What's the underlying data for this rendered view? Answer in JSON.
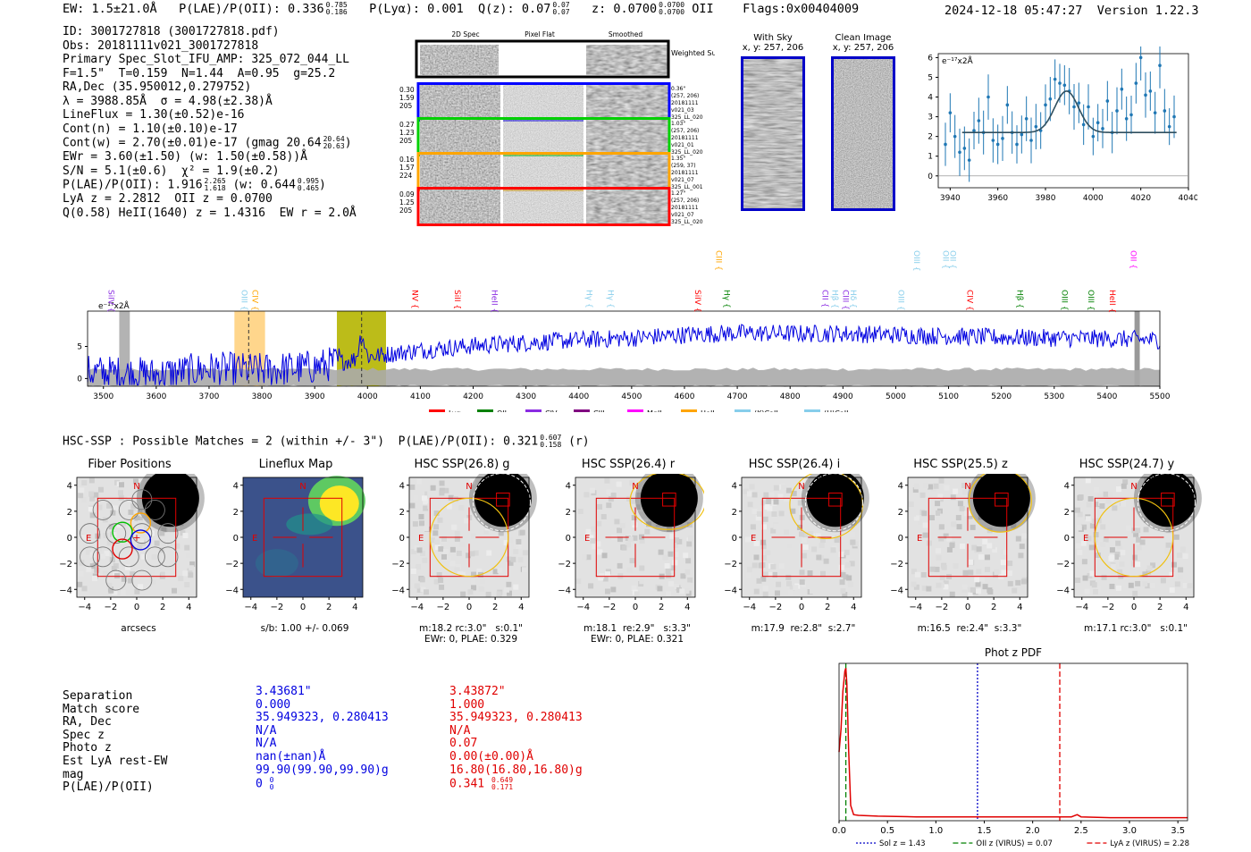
{
  "header": {
    "ew": "EW: 1.5±21.0Å",
    "plae": "P(LAE)/P(OII): 0.336",
    "plae_hi": "0.785",
    "plae_lo": "0.186",
    "plya": "P(Lyα): 0.001",
    "qz": "Q(z): 0.07",
    "qz_hi": "0.07",
    "qz_lo": "0.07",
    "z": "z: 0.0700",
    "z_hi": "0.0700",
    "z_lo": "0.0700",
    "z_line": "OII",
    "flags": "Flags:0x00404009",
    "datetime": "2024-12-18 05:47:27",
    "version": "Version 1.22.3"
  },
  "info": {
    "id": "ID: 3001727818 (3001727818.pdf)",
    "obs": "Obs: 20181111v021_3001727818",
    "primary": "Primary Spec_Slot_IFU_AMP: 325_072_044_LL",
    "fwhm": "F=1.5\"  T=0.159  N=1.44  A=0.95  g=25.2",
    "radec": "RA,Dec (35.950012,0.279752)",
    "lambda": "λ = 3988.85Å  σ = 4.98(±2.38)Å",
    "lineflux": "LineFlux = 1.30(±0.52)e-16",
    "contn": "Cont(n) = 1.10(±0.10)e-17",
    "contw": "Cont(w) = 2.70(±0.01)e-17 (gmag 20.64",
    "gmag_hi": "20.64",
    "gmag_lo": "20.63",
    "ewr": "EWr = 3.60(±1.50) (w: 1.50(±0.58))Å",
    "sn": "S/N = 5.1(±0.6)  χ² = 1.9(±0.2)",
    "plae": "P(LAE)/P(OII): 1.916",
    "plae_hi": "2.265",
    "plae_lo": "1.618",
    "plae_w": "(w: 0.644",
    "plae_w_hi": "0.995",
    "plae_w_lo": "0.465",
    "lya_z": "LyA z = 2.2812  OII z = 0.0700",
    "heii": "Q(0.58) HeII(1640) z = 1.4316  EW r = 2.0Å"
  },
  "cutouts": {
    "col_2d": "2D Spec",
    "col_flat": "Pixel Flat",
    "col_smooth": "Smoothed",
    "weighted": "Weighted Sum",
    "rows": [
      {
        "left": [
          "0.30",
          "1.59",
          "205"
        ],
        "right": [
          "0.36\"",
          "(257, 206)",
          "20181111",
          "v021_03",
          "325_LL_020"
        ],
        "color": "#0000ff"
      },
      {
        "left": [
          "0.27",
          "1.23",
          "205"
        ],
        "right": [
          "1.03\"",
          "(257, 206)",
          "20181111",
          "v021_01",
          "325_LL_020"
        ],
        "color": "#00d000"
      },
      {
        "left": [
          "0.16",
          "1.57",
          "224"
        ],
        "right": [
          "1.35\"",
          "(259, 37)",
          "20181111",
          "v021_07",
          "325_LL_001"
        ],
        "color": "#ffa500"
      },
      {
        "left": [
          "0.09",
          "1.25",
          "205"
        ],
        "right": [
          "1.27\"",
          "(257, 206)",
          "20181111",
          "v021_07",
          "325_LL_020"
        ],
        "color": "#ff0000"
      }
    ]
  },
  "sky": {
    "with_sky": "With Sky",
    "with_sky_xy": "x, y: 257, 206",
    "clean": "Clean Image",
    "clean_xy": "x, y: 257, 206"
  },
  "lines_full": [
    {
      "name": "SiIV",
      "color": "#8a2be2"
    },
    {
      "name": "OIII",
      "color": "#87ceeb"
    },
    {
      "name": "CIV",
      "color": "#ffa500"
    },
    {
      "name": "NV",
      "color": "#ff0000"
    },
    {
      "name": "SiII",
      "color": "#ff0000"
    },
    {
      "name": "HeII",
      "color": "#8a2be2"
    },
    {
      "name": "Hγ",
      "color": "#87ceeb"
    },
    {
      "name": "Hγ",
      "color": "#87ceeb"
    },
    {
      "name": "SiIV",
      "color": "#ff0000"
    },
    {
      "name": "CIII",
      "color": "#ffa500"
    },
    {
      "name": "Hγ",
      "color": "#008000"
    },
    {
      "name": "CII",
      "color": "#8a2be2"
    },
    {
      "name": "Hβ",
      "color": "#87ceeb"
    },
    {
      "name": "CIII",
      "color": "#8a2be2"
    },
    {
      "name": "Hδ",
      "color": "#87ceeb"
    },
    {
      "name": "OIII",
      "color": "#87ceeb"
    },
    {
      "name": "OIII",
      "color": "#87ceeb"
    },
    {
      "name": "OII",
      "color": "#87ceeb"
    },
    {
      "name": "OII",
      "color": "#87ceeb"
    },
    {
      "name": "CIV",
      "color": "#ff0000"
    },
    {
      "name": "Hβ",
      "color": "#008000"
    },
    {
      "name": "OIII",
      "color": "#008000"
    },
    {
      "name": "OIII",
      "color": "#008000"
    },
    {
      "name": "HeII",
      "color": "#ff0000"
    },
    {
      "name": "OII",
      "color": "#ff00ff"
    }
  ],
  "legend": [
    {
      "label": "Lyα",
      "color": "#ff0000"
    },
    {
      "label": "OII",
      "color": "#008000"
    },
    {
      "label": "CIV",
      "color": "#8a2be2"
    },
    {
      "label": "CIII",
      "color": "#800080"
    },
    {
      "label": "MgII",
      "color": "#ff00ff"
    },
    {
      "label": "HeII",
      "color": "#ffa500"
    },
    {
      "label": "(K)CaII",
      "color": "#87ceeb"
    },
    {
      "label": "(H)CaII",
      "color": "#87ceeb"
    }
  ],
  "hsc": {
    "line": "HSC-SSP : Possible Matches = 2 (within +/- 3\")  P(LAE)/P(OII): 0.321",
    "plae_hi": "0.607",
    "plae_lo": "0.158",
    "plae_tail": "(r)",
    "panels": [
      {
        "title": "Fiber Positions",
        "cap1": "arcsecs",
        "cap2": ""
      },
      {
        "title": "Lineflux Map",
        "cap1": "s/b: 1.00 +/- 0.069",
        "cap2": ""
      },
      {
        "title": "HSC SSP(26.8) g",
        "cap1": "m:18.2 rc:3.0\"   s:0.1\"",
        "cap2": "EWr: 0, PLAE: 0.329"
      },
      {
        "title": "HSC SSP(26.4) r",
        "cap1": "m:18.1  re:2.9\"   s:3.3\"",
        "cap2": "EWr: 0, PLAE: 0.321"
      },
      {
        "title": "HSC SSP(26.4) i",
        "cap1": "m:17.9  re:2.8\"  s:2.7\"",
        "cap2": ""
      },
      {
        "title": "HSC SSP(25.5) z",
        "cap1": "m:16.5  re:2.4\"  s:3.3\"",
        "cap2": ""
      },
      {
        "title": "HSC SSP(24.7) y",
        "cap1": "m:17.1 rc:3.0\"   s:0.1\"",
        "cap2": ""
      }
    ],
    "compass_n": "N",
    "compass_e": "E",
    "ticks": [
      "4",
      "2",
      "0",
      "−2",
      "−4"
    ],
    "xticks": [
      "−4",
      "−2",
      "0",
      "2",
      "4"
    ]
  },
  "match_table": {
    "labels": [
      "Separation",
      "Match score",
      "RA, Dec",
      "Spec z",
      "Photo z",
      "Est LyA rest-EW",
      "mag",
      "P(LAE)/P(OII)"
    ],
    "colA": [
      "3.43681\"",
      "0.000",
      "35.949323, 0.280413",
      "N/A",
      "N/A",
      "nan(±nan)Å",
      "99.90(99.90,99.90)g",
      "0"
    ],
    "colA_plae_hi": "0",
    "colA_plae_lo": "0",
    "colB": [
      "3.43872\"",
      "1.000",
      "35.949323, 0.280413",
      "N/A",
      "0.07",
      "0.00(±0.00)Å",
      "16.80(16.80,16.80)g",
      "0.341"
    ],
    "colB_plae_hi": "0.649",
    "colB_plae_lo": "0.171"
  },
  "chart_data": [
    {
      "type": "line",
      "name": "emission line fit",
      "title": "",
      "ylabel_unit": "e⁻¹⁷x2Å",
      "xlim": [
        3935,
        4040
      ],
      "ylim": [
        -0.6,
        6.2
      ],
      "xticks": [
        3940,
        3960,
        3980,
        4000,
        4020,
        4040
      ],
      "yticks": [
        0,
        1,
        2,
        3,
        4,
        5,
        6
      ],
      "data_x": [
        3938,
        3940,
        3942,
        3944,
        3946,
        3948,
        3950,
        3952,
        3954,
        3956,
        3958,
        3960,
        3962,
        3964,
        3966,
        3968,
        3970,
        3972,
        3974,
        3976,
        3978,
        3980,
        3982,
        3984,
        3986,
        3988,
        3990,
        3992,
        3994,
        3996,
        3998,
        4000,
        4002,
        4004,
        4006,
        4008,
        4010,
        4012,
        4014,
        4016,
        4018,
        4020,
        4022,
        4024,
        4026,
        4028,
        4030,
        4032,
        4034
      ],
      "data_y": [
        1.6,
        3.2,
        2.0,
        1.2,
        1.4,
        0.8,
        2.3,
        2.8,
        2.2,
        4.0,
        1.8,
        1.6,
        1.9,
        3.6,
        2.2,
        1.6,
        2.1,
        2.9,
        1.8,
        2.5,
        2.3,
        3.6,
        3.9,
        4.9,
        4.7,
        4.6,
        4.3,
        3.5,
        3.7,
        2.6,
        3.5,
        2.0,
        2.7,
        2.4,
        3.8,
        2.2,
        3.3,
        4.4,
        2.9,
        3.1,
        4.7,
        6.0,
        4.1,
        4.3,
        3.2,
        5.6,
        3.3,
        2.5,
        3.0
      ],
      "fit": {
        "model": "gaussian",
        "center": 3988.85,
        "sigma": 4.98,
        "amplitude": 2.1,
        "continuum": 2.2
      },
      "xstart_fit": 3945,
      "xend_fit": 4035
    },
    {
      "type": "line",
      "name": "full spectrum",
      "ylabel_unit": "e⁻¹⁷x2Å",
      "xlim": [
        3470,
        5500
      ],
      "ylim": [
        -1.2,
        10.5
      ],
      "xticks": [
        3500,
        3600,
        3700,
        3800,
        3900,
        4000,
        4100,
        4200,
        4300,
        4400,
        4500,
        4600,
        4700,
        4800,
        4900,
        5000,
        5100,
        5200,
        5300,
        5400,
        5500
      ],
      "yticks": [
        0,
        5
      ],
      "highlight_ranges": [
        {
          "from": 3748,
          "to": 3806,
          "color": "#ffa500",
          "alpha": 0.45
        },
        {
          "from": 3942,
          "to": 4035,
          "color": "#b5b500",
          "alpha": 0.9
        },
        {
          "from": 3530,
          "to": 3550,
          "color": "#808080",
          "alpha": 0.6
        },
        {
          "from": 5452,
          "to": 5462,
          "color": "#808080",
          "alpha": 0.8
        }
      ],
      "markers": [
        3775,
        3988.85
      ],
      "line_positions": [
        3505,
        3757,
        3777,
        4080,
        4160,
        4230,
        4410,
        4450,
        4615,
        4655,
        4670,
        4856,
        4875,
        4895,
        4910,
        5000,
        5030,
        5085,
        5098,
        5130,
        5225,
        5310,
        5360,
        5400,
        5440
      ],
      "continuum_level": [
        [
          3470,
          1.0
        ],
        [
          3600,
          0.6
        ],
        [
          3700,
          1.5
        ],
        [
          3800,
          1.3
        ],
        [
          3900,
          1.8
        ],
        [
          4000,
          3.4
        ],
        [
          4100,
          4.4
        ],
        [
          4200,
          5.1
        ],
        [
          4300,
          5.6
        ],
        [
          4400,
          6.0
        ],
        [
          4500,
          6.3
        ],
        [
          4600,
          6.8
        ],
        [
          4700,
          7.1
        ],
        [
          4800,
          7.0
        ],
        [
          4900,
          7.0
        ],
        [
          5000,
          6.8
        ],
        [
          5100,
          6.6
        ],
        [
          5200,
          6.4
        ],
        [
          5300,
          6.3
        ],
        [
          5400,
          6.2
        ],
        [
          5500,
          6.0
        ]
      ]
    },
    {
      "type": "line",
      "name": "Phot z PDF",
      "title": "Phot z PDF",
      "xlim": [
        0,
        3.6
      ],
      "xticks": [
        0.0,
        0.5,
        1.0,
        1.5,
        2.0,
        2.5,
        3.0,
        3.5
      ],
      "curve_x": [
        0,
        0.02,
        0.04,
        0.06,
        0.07,
        0.08,
        0.1,
        0.12,
        0.15,
        0.2,
        0.4,
        0.8,
        1.2,
        1.6,
        2.0,
        2.4,
        2.46,
        2.5,
        2.8,
        3.2,
        3.6
      ],
      "curve_y": [
        0.45,
        0.6,
        0.85,
        0.98,
        1.0,
        0.9,
        0.45,
        0.1,
        0.04,
        0.035,
        0.03,
        0.025,
        0.025,
        0.025,
        0.025,
        0.025,
        0.04,
        0.025,
        0.02,
        0.02,
        0.02
      ],
      "vlines": [
        {
          "x": 1.43,
          "label": "Sol z = 1.43",
          "color": "#0000c8",
          "style": "dotted"
        },
        {
          "x": 0.07,
          "label": "OII z (VIRUS) = 0.07",
          "color": "#008000",
          "style": "dashed"
        },
        {
          "x": 2.28,
          "label": "LyA z (VIRUS) = 2.28",
          "color": "#e00000",
          "style": "dashed"
        }
      ]
    }
  ]
}
